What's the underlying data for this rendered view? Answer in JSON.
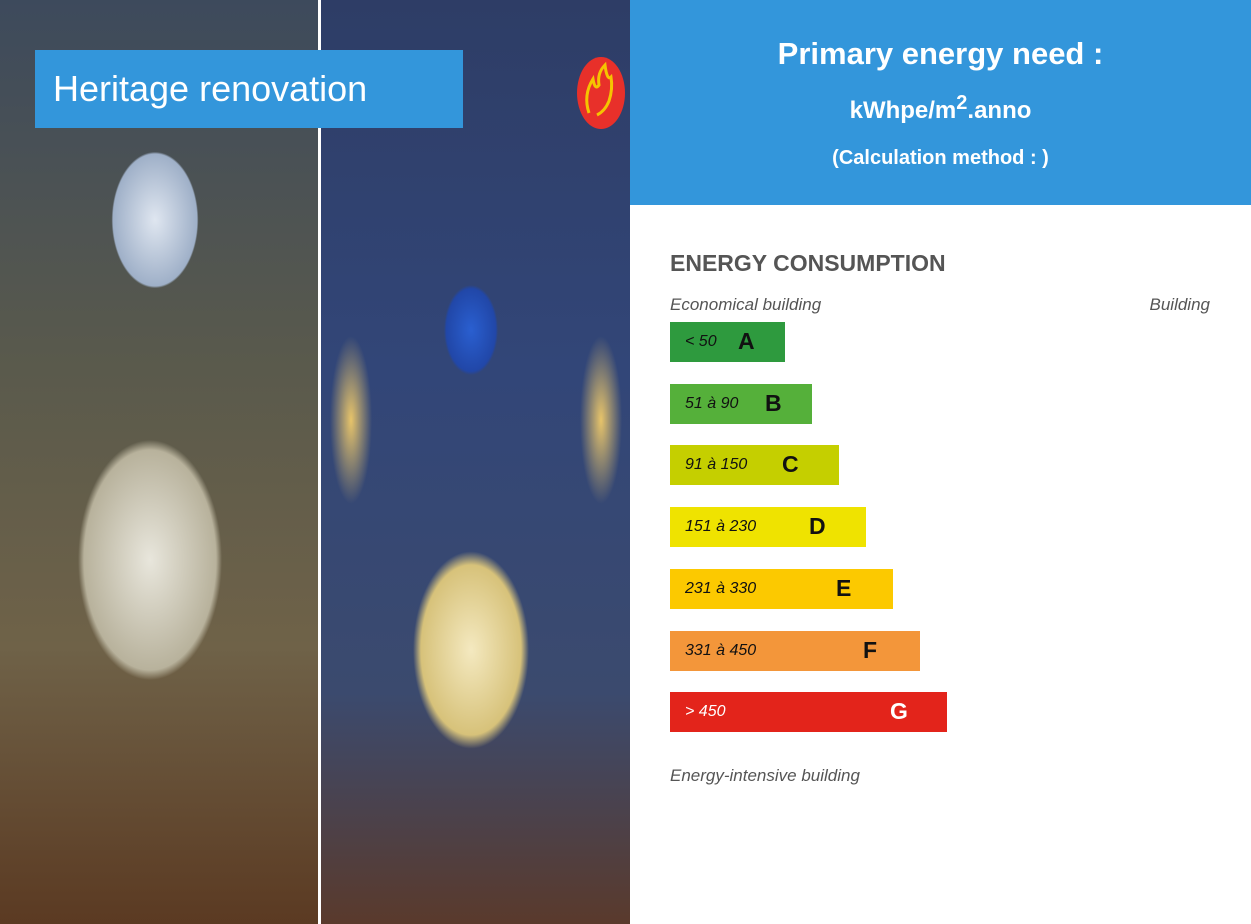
{
  "banner": {
    "title": "Heritage renovation"
  },
  "header": {
    "title": "Primary energy need :",
    "unit_prefix": "kWhpe/m",
    "unit_exponent": "2",
    "unit_suffix": ".anno",
    "method": "(Calculation method : )"
  },
  "energy": {
    "title": "ENERGY CONSUMPTION",
    "top_left": "Economical building",
    "top_right": "Building",
    "bottom": "Energy-intensive building",
    "classes": [
      {
        "range": "< 50",
        "letter": "A",
        "color": "#2e9a3e"
      },
      {
        "range": "51 à 90",
        "letter": "B",
        "color": "#55b03a"
      },
      {
        "range": "91 à 150",
        "letter": "C",
        "color": "#c5cf00"
      },
      {
        "range": "151 à 230",
        "letter": "D",
        "color": "#efe300"
      },
      {
        "range": "231 à 330",
        "letter": "E",
        "color": "#fcc900"
      },
      {
        "range": "331 à 450",
        "letter": "F",
        "color": "#f3963a"
      },
      {
        "range": "> 450",
        "letter": "G",
        "color": "#e3241b"
      }
    ]
  }
}
